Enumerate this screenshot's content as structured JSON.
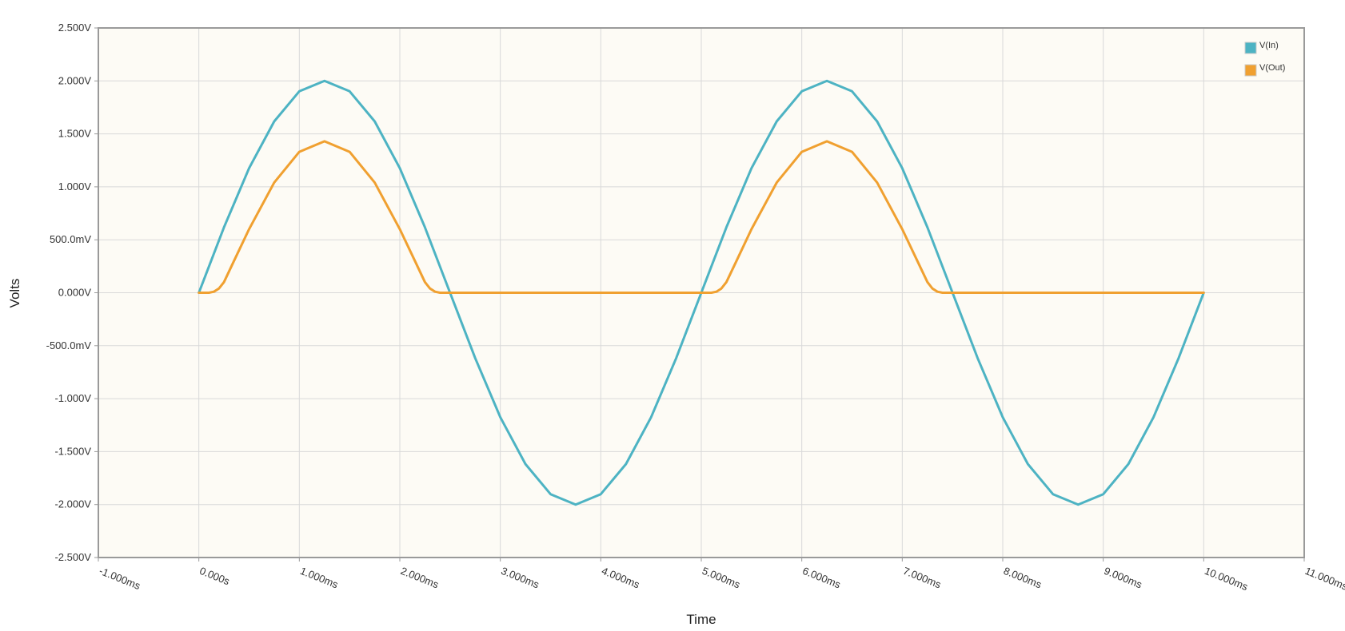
{
  "chart_data": {
    "type": "line",
    "xlabel": "Time",
    "ylabel": "Volts",
    "xlim": [
      -1.0,
      11.0
    ],
    "ylim": [
      -2.5,
      2.5
    ],
    "x_unit": "ms",
    "x_ticks": [
      -1,
      0,
      1,
      2,
      3,
      4,
      5,
      6,
      7,
      8,
      9,
      10,
      11
    ],
    "x_tick_labels": [
      "-1.000ms",
      "0.000s",
      "1.000ms",
      "2.000ms",
      "3.000ms",
      "4.000ms",
      "5.000ms",
      "6.000ms",
      "7.000ms",
      "8.000ms",
      "9.000ms",
      "10.000ms",
      "11.000ms"
    ],
    "y_ticks": [
      2.5,
      2.0,
      1.5,
      1.0,
      0.5,
      0.0,
      -0.5,
      -1.0,
      -1.5,
      -2.0,
      -2.5
    ],
    "y_tick_labels": [
      "2.500V",
      "2.000V",
      "1.500V",
      "1.000V",
      "500.0mV",
      "0.000V",
      "-500.0mV",
      "-1.000V",
      "-1.500V",
      "-2.000V",
      "-2.500V"
    ],
    "grid": true,
    "legend_position": "top-right",
    "plot_background": "#fdfbf5",
    "grid_color": "#d9d9d9",
    "axis_color": "#9a9a9a",
    "series": [
      {
        "name": "V(In)",
        "color": "#4db3c3",
        "x": [
          0.0,
          0.25,
          0.5,
          0.75,
          1.0,
          1.25,
          1.5,
          1.75,
          2.0,
          2.25,
          2.5,
          2.75,
          3.0,
          3.25,
          3.5,
          3.75,
          4.0,
          4.25,
          4.5,
          4.75,
          5.0,
          5.25,
          5.5,
          5.75,
          6.0,
          6.25,
          6.5,
          6.75,
          7.0,
          7.25,
          7.5,
          7.75,
          8.0,
          8.25,
          8.5,
          8.75,
          9.0,
          9.25,
          9.5,
          9.75,
          10.0
        ],
        "y": [
          0.0,
          0.618,
          1.176,
          1.618,
          1.902,
          2.0,
          1.902,
          1.618,
          1.176,
          0.618,
          0.0,
          -0.618,
          -1.176,
          -1.618,
          -1.902,
          -2.0,
          -1.902,
          -1.618,
          -1.176,
          -0.618,
          0.0,
          0.618,
          1.176,
          1.618,
          1.902,
          2.0,
          1.902,
          1.618,
          1.176,
          0.618,
          0.0,
          -0.618,
          -1.176,
          -1.618,
          -1.902,
          -2.0,
          -1.902,
          -1.618,
          -1.176,
          -0.618,
          0.0
        ]
      },
      {
        "name": "V(Out)",
        "color": "#f0a030",
        "x": [
          0.0,
          0.1,
          0.15,
          0.2,
          0.25,
          0.35,
          0.5,
          0.75,
          1.0,
          1.25,
          1.5,
          1.75,
          2.0,
          2.15,
          2.25,
          2.3,
          2.35,
          2.4,
          2.5,
          3.0,
          4.0,
          5.0,
          5.1,
          5.15,
          5.2,
          5.25,
          5.35,
          5.5,
          5.75,
          6.0,
          6.25,
          6.5,
          6.75,
          7.0,
          7.15,
          7.25,
          7.3,
          7.35,
          7.4,
          7.5,
          8.0,
          9.0,
          10.0
        ],
        "y": [
          0.0,
          0.0,
          0.01,
          0.04,
          0.1,
          0.3,
          0.6,
          1.04,
          1.33,
          1.43,
          1.33,
          1.04,
          0.6,
          0.3,
          0.1,
          0.04,
          0.01,
          0.0,
          0.0,
          0.0,
          0.0,
          0.0,
          0.0,
          0.01,
          0.04,
          0.1,
          0.3,
          0.6,
          1.04,
          1.33,
          1.43,
          1.33,
          1.04,
          0.6,
          0.3,
          0.1,
          0.04,
          0.01,
          0.0,
          0.0,
          0.0,
          0.0,
          0.0
        ]
      }
    ]
  }
}
